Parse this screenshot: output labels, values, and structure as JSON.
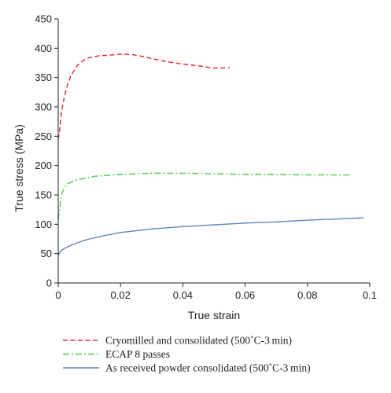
{
  "chart_data": {
    "type": "line",
    "xlabel": "True strain",
    "ylabel": "True stress (MPa)",
    "xlim": [
      0,
      0.1
    ],
    "ylim": [
      0,
      450
    ],
    "xticks": [
      0,
      0.02,
      0.04,
      0.06,
      0.08,
      0.1
    ],
    "xtick_labels": [
      "0",
      "0.02",
      "0.04",
      "0.06",
      "0.08",
      "0.1"
    ],
    "yticks": [
      0,
      50,
      100,
      150,
      200,
      250,
      300,
      350,
      400,
      450
    ],
    "ytick_labels": [
      "0",
      "50",
      "100",
      "150",
      "200",
      "250",
      "300",
      "350",
      "400",
      "450"
    ],
    "grid": false,
    "legend_position": "bottom",
    "series": [
      {
        "name": "Cryomilled and consolidated (500˚C-3 min)",
        "color": "#e8262a",
        "dash": "dashed",
        "points": [
          [
            0,
            245
          ],
          [
            0.0005,
            262
          ],
          [
            0.001,
            290
          ],
          [
            0.002,
            318
          ],
          [
            0.003,
            338
          ],
          [
            0.004,
            352
          ],
          [
            0.006,
            370
          ],
          [
            0.008,
            379
          ],
          [
            0.01,
            384
          ],
          [
            0.013,
            387
          ],
          [
            0.016,
            388
          ],
          [
            0.02,
            390
          ],
          [
            0.024,
            389
          ],
          [
            0.028,
            385
          ],
          [
            0.032,
            380
          ],
          [
            0.036,
            376
          ],
          [
            0.04,
            373
          ],
          [
            0.045,
            370
          ],
          [
            0.05,
            366
          ],
          [
            0.052,
            366
          ],
          [
            0.055,
            367
          ]
        ]
      },
      {
        "name": "ECAP 8 passes",
        "color": "#4ccc4c",
        "dash": "dashdot",
        "points": [
          [
            0,
            108
          ],
          [
            0.0005,
            128
          ],
          [
            0.001,
            150
          ],
          [
            0.002,
            163
          ],
          [
            0.003,
            169
          ],
          [
            0.005,
            174
          ],
          [
            0.008,
            178
          ],
          [
            0.012,
            182
          ],
          [
            0.02,
            185
          ],
          [
            0.03,
            187
          ],
          [
            0.04,
            187
          ],
          [
            0.05,
            186
          ],
          [
            0.06,
            185
          ],
          [
            0.07,
            185
          ],
          [
            0.08,
            184
          ],
          [
            0.09,
            184
          ],
          [
            0.0935,
            184
          ]
        ]
      },
      {
        "name": "As received powder consolidated (500˚C-3 min)",
        "color": "#5b86b5",
        "dash": "solid",
        "points": [
          [
            0,
            47
          ],
          [
            0.0005,
            52
          ],
          [
            0.001,
            55
          ],
          [
            0.002,
            59
          ],
          [
            0.004,
            64
          ],
          [
            0.006,
            68
          ],
          [
            0.008,
            72
          ],
          [
            0.01,
            75
          ],
          [
            0.015,
            81
          ],
          [
            0.02,
            86
          ],
          [
            0.03,
            92
          ],
          [
            0.04,
            96
          ],
          [
            0.05,
            99
          ],
          [
            0.06,
            102
          ],
          [
            0.07,
            104
          ],
          [
            0.08,
            107
          ],
          [
            0.09,
            109
          ],
          [
            0.098,
            111
          ]
        ]
      }
    ]
  }
}
